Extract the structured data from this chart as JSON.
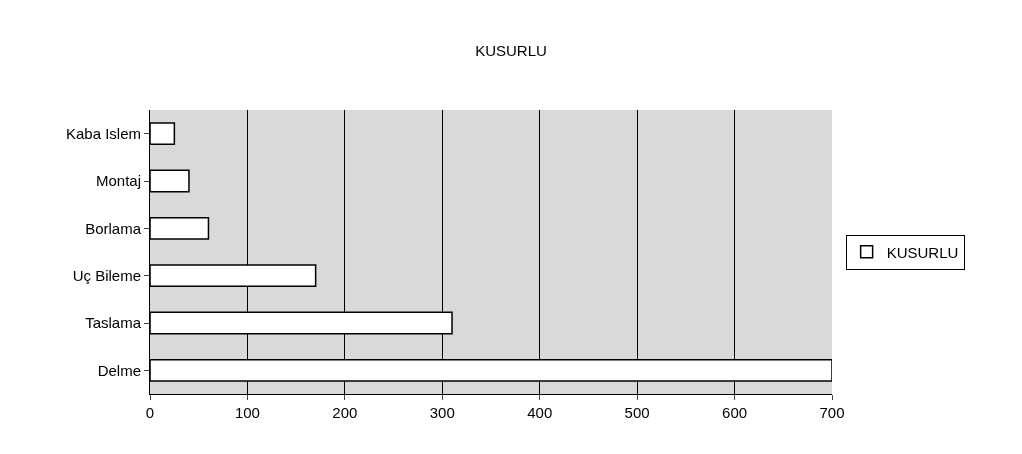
{
  "chart_data": {
    "type": "bar",
    "title": "KUSURLU",
    "orientation": "horizontal",
    "categories": [
      "Kaba Islem",
      "Montaj",
      "Borlama",
      "Uç Bileme",
      "Taslama",
      "Delme"
    ],
    "series": [
      {
        "name": "KUSURLU",
        "color": "#ffffff",
        "values": [
          25,
          40,
          60,
          170,
          310,
          700
        ]
      }
    ],
    "xlim": [
      0,
      700
    ],
    "xticks": [
      0,
      100,
      200,
      300,
      400,
      500,
      600,
      700
    ],
    "grid": "x",
    "legend": "right"
  }
}
